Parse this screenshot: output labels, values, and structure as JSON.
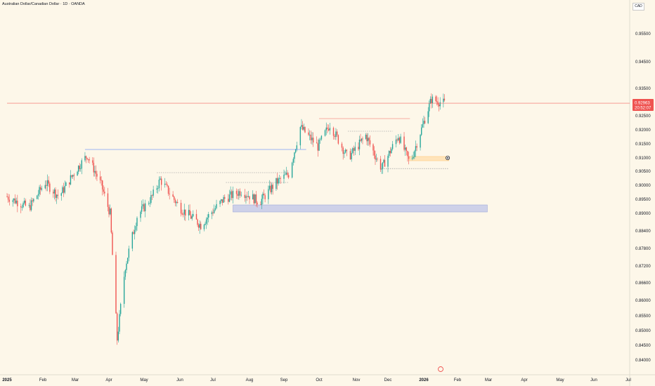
{
  "header": {
    "title": "Australian Dollar/Canadian Dollar · 1D · OANDA"
  },
  "currency_box": "CAD",
  "price_label": {
    "value": "0.92963",
    "countdown": "20:52:07"
  },
  "colors": {
    "up": "#26a69a",
    "down": "#ef5350",
    "background": "#fdf7e9",
    "level_line_blue": "#2962ff",
    "level_line_gray": "#787b86",
    "zone_blue": "#c5cae9",
    "zone_orange": "#ffe0b2",
    "price_tag": "#ef5350"
  },
  "chart_data": {
    "type": "candlestick",
    "symbol": "AUDCAD",
    "timeframe": "1D",
    "x_ticks": [
      "2025",
      "Feb",
      "Mar",
      "Apr",
      "May",
      "Jun",
      "Jul",
      "Aug",
      "Sep",
      "Oct",
      "Nov",
      "Dec",
      "2026",
      "Feb",
      "Mar",
      "Apr",
      "May",
      "Jun",
      "Jul"
    ],
    "y_ticks": [
      "0.95500",
      "0.94500",
      "0.93500",
      "0.92500",
      "0.92000",
      "0.91500",
      "0.91000",
      "0.90500",
      "0.90000",
      "0.89500",
      "0.89000",
      "0.88400",
      "0.87800",
      "0.87200",
      "0.86600",
      "0.86000",
      "0.85500",
      "0.85000",
      "0.84500",
      "0.84000"
    ],
    "price_path": [
      {
        "x": "2025-01-01",
        "y": 0.896
      },
      {
        "x": "2025-01-20",
        "y": 0.892
      },
      {
        "x": "2025-02-03",
        "y": 0.901
      },
      {
        "x": "2025-02-15",
        "y": 0.896
      },
      {
        "x": "2025-03-01",
        "y": 0.905
      },
      {
        "x": "2025-03-12",
        "y": 0.911
      },
      {
        "x": "2025-03-25",
        "y": 0.9
      },
      {
        "x": "2025-04-02",
        "y": 0.89
      },
      {
        "x": "2025-04-08",
        "y": 0.847
      },
      {
        "x": "2025-04-15",
        "y": 0.872
      },
      {
        "x": "2025-04-25",
        "y": 0.889
      },
      {
        "x": "2025-05-08",
        "y": 0.896
      },
      {
        "x": "2025-05-15",
        "y": 0.902
      },
      {
        "x": "2025-06-01",
        "y": 0.892
      },
      {
        "x": "2025-06-20",
        "y": 0.886
      },
      {
        "x": "2025-07-10",
        "y": 0.895
      },
      {
        "x": "2025-07-25",
        "y": 0.898
      },
      {
        "x": "2025-08-10",
        "y": 0.894
      },
      {
        "x": "2025-08-25",
        "y": 0.901
      },
      {
        "x": "2025-09-05",
        "y": 0.904
      },
      {
        "x": "2025-09-15",
        "y": 0.921
      },
      {
        "x": "2025-09-30",
        "y": 0.914
      },
      {
        "x": "2025-10-10",
        "y": 0.922
      },
      {
        "x": "2025-10-25",
        "y": 0.91
      },
      {
        "x": "2025-11-10",
        "y": 0.918
      },
      {
        "x": "2025-11-25",
        "y": 0.906
      },
      {
        "x": "2025-12-10",
        "y": 0.918
      },
      {
        "x": "2025-12-20",
        "y": 0.908
      },
      {
        "x": "2026-01-02",
        "y": 0.924
      },
      {
        "x": "2026-01-08",
        "y": 0.931
      },
      {
        "x": "2026-01-20",
        "y": 0.9296
      }
    ],
    "levels": [
      {
        "price": 0.913,
        "from": "2025-03-10",
        "to": "2025-09-20",
        "color": "blue"
      },
      {
        "price": 0.9045,
        "from": "2025-05-12",
        "to": "2025-09-05",
        "color": "gray"
      },
      {
        "price": 0.901,
        "from": "2025-07-12",
        "to": "2025-09-05",
        "color": "gray"
      },
      {
        "price": 0.924,
        "from": "2025-10-01",
        "to": "2025-12-20",
        "color": "red"
      },
      {
        "price": 0.9195,
        "from": "2025-10-25",
        "to": "2025-12-05",
        "color": "gray"
      },
      {
        "price": 0.906,
        "from": "2025-11-25",
        "to": "2026-01-24",
        "color": "gray"
      },
      {
        "price": 0.9296,
        "from": "2025-01-01",
        "to": "2026-07-15",
        "color": "red"
      }
    ],
    "zones": [
      {
        "low": 0.8905,
        "high": 0.893,
        "from": "2025-07-18",
        "to": "2026-02-28",
        "color": "blue"
      },
      {
        "low": 0.9095,
        "high": 0.9105,
        "from": "2025-12-19",
        "to": "2026-01-24",
        "color": "orange"
      }
    ],
    "current_price": 0.92963,
    "ylim": [
      0.84,
      0.956
    ]
  }
}
